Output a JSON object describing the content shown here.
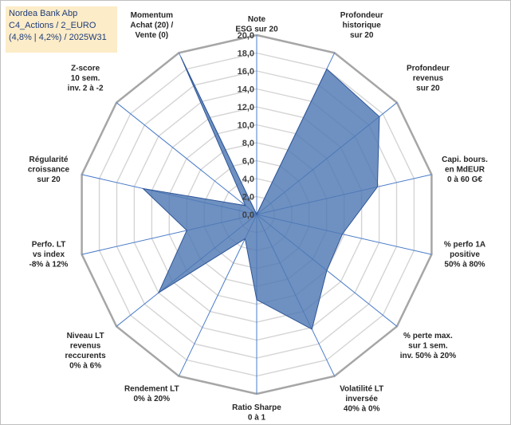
{
  "title_box": {
    "line1": "Nordea Bank Abp",
    "line2": "C4_Actions / 2_EURO",
    "line3": "(4,8% | 4,2%) / 2025W31"
  },
  "colors": {
    "fill": "#4f79b3",
    "stroke": "#2e5597",
    "grid": "#d4d4d4",
    "outer_ring": "#a6a6a6",
    "spoke": "#4a7cc9",
    "title_bg": "#fcecc8"
  },
  "chart_data": {
    "type": "radar",
    "grid": true,
    "rmin": 0,
    "rmax": 20,
    "ticks": [
      "0,0",
      "2,0",
      "4,0",
      "6,0",
      "8,0",
      "10,0",
      "12,0",
      "14,0",
      "16,0",
      "18,0",
      "20,0"
    ],
    "categories": [
      [
        "Note",
        "ESG sur 20"
      ],
      [
        "Profondeur",
        "historique",
        "sur 20"
      ],
      [
        "Profondeur",
        "revenus",
        "sur 20"
      ],
      [
        "Capi. bours.",
        "en MdEUR",
        "0 à 60 G€"
      ],
      [
        "% perfo 1A",
        "positive",
        "50% à 80%"
      ],
      [
        "% perte max.",
        "sur 1 sem.",
        "inv. 50% à 20%"
      ],
      [
        "Volatilité LT",
        "inversée",
        "40% à 0%"
      ],
      [
        "Ratio Sharpe",
        "0 à 1"
      ],
      [
        "Rendement LT",
        "0% à 20%"
      ],
      [
        "Niveau LT",
        "revenus",
        "reccurents",
        "0% à 6%"
      ],
      [
        "Perfo. LT",
        "vs index",
        "-8% à 12%"
      ],
      [
        "Régularité",
        "croissance",
        "sur 20"
      ],
      [
        "Z-score",
        "10 sem.",
        "inv. 2 à -2"
      ],
      [
        "Momentum",
        "Achat (20) /",
        "Vente (0)"
      ]
    ],
    "values": [
      0,
      18.0,
      17.5,
      13.8,
      9.8,
      10.0,
      14.2,
      9.5,
      3.0,
      14.0,
      8.0,
      13.0,
      1.6,
      19.5
    ]
  }
}
